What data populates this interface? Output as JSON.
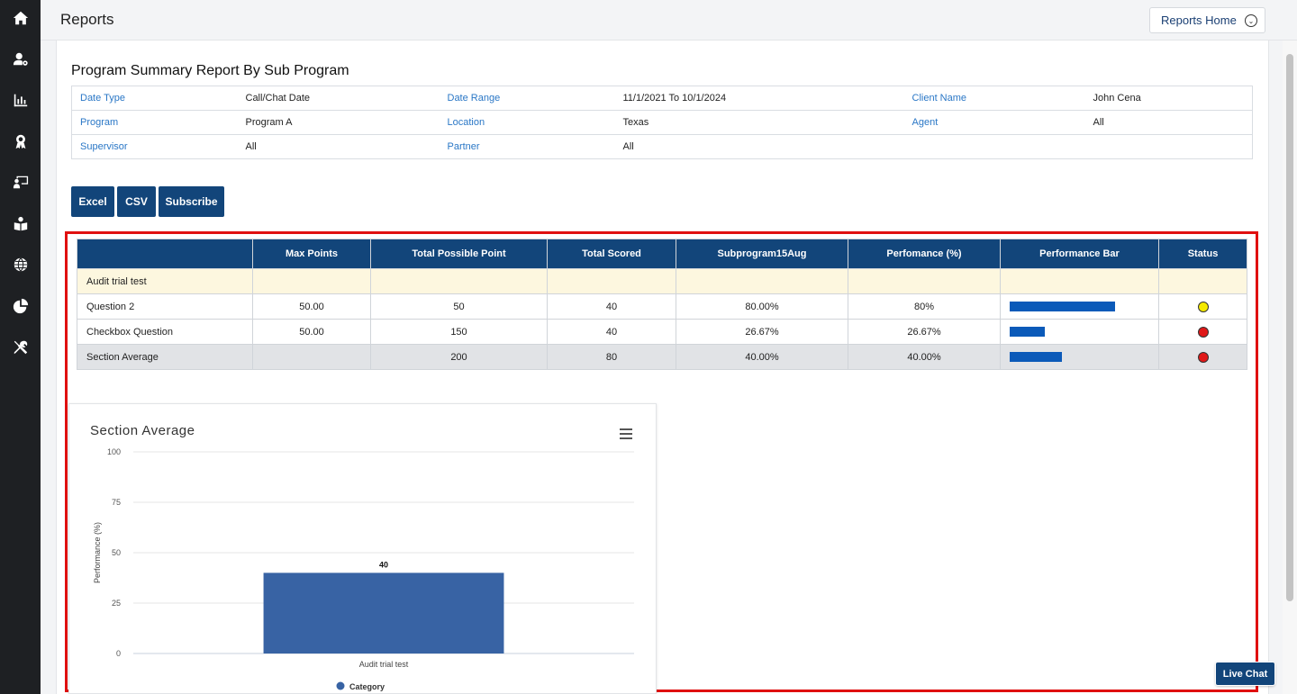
{
  "header": {
    "title": "Reports",
    "reports_home_label": "Reports Home"
  },
  "sidebar": {
    "items": [
      {
        "icon": "home-icon"
      },
      {
        "icon": "user-settings-icon"
      },
      {
        "icon": "bar-chart-icon"
      },
      {
        "icon": "award-icon"
      },
      {
        "icon": "presentation-icon"
      },
      {
        "icon": "book-reader-icon"
      },
      {
        "icon": "globe-icon"
      },
      {
        "icon": "pie-chart-icon"
      },
      {
        "icon": "tools-icon"
      }
    ]
  },
  "report": {
    "title": "Program Summary Report By Sub Program",
    "filters": [
      [
        {
          "label": "Date Type",
          "value": "Call/Chat Date"
        },
        {
          "label": "Date Range",
          "value": "11/1/2021 To 10/1/2024"
        },
        {
          "label": "Client Name",
          "value": "John Cena"
        }
      ],
      [
        {
          "label": "Program",
          "value": "Program A"
        },
        {
          "label": "Location",
          "value": "Texas"
        },
        {
          "label": "Agent",
          "value": "All"
        }
      ],
      [
        {
          "label": "Supervisor",
          "value": "All"
        },
        {
          "label": "Partner",
          "value": "All"
        },
        {
          "label": "",
          "value": ""
        }
      ]
    ],
    "buttons": {
      "excel": "Excel",
      "csv": "CSV",
      "subscribe": "Subscribe"
    }
  },
  "table": {
    "headers": [
      "",
      "Max Points",
      "Total Possible Point",
      "Total Scored",
      "Subprogram15Aug",
      "Perfomance (%)",
      "Performance Bar",
      "Status"
    ],
    "section_label": "Audit trial test",
    "rows": [
      {
        "name": "Question 2",
        "max": "50.00",
        "possible": "50",
        "scored": "40",
        "sub": "80.00%",
        "perf": "80%",
        "bar": 0.8,
        "status_color": "#f5ea00"
      },
      {
        "name": "Checkbox Question",
        "max": "50.00",
        "possible": "150",
        "scored": "40",
        "sub": "26.67%",
        "perf": "26.67%",
        "bar": 0.2667,
        "status_color": "#e01818"
      }
    ],
    "average": {
      "name": "Section Average",
      "max": "",
      "possible": "200",
      "scored": "80",
      "sub": "40.00%",
      "perf": "40.00%",
      "bar": 0.4,
      "status_color": "#e01818"
    }
  },
  "chart_data": {
    "type": "bar",
    "title": "Section Average",
    "categories": [
      "Audit trial test"
    ],
    "series": [
      {
        "name": "Category",
        "values": [
          40
        ]
      }
    ],
    "ylabel": "Performance (%)",
    "xlabel": "",
    "ylim": [
      0,
      100
    ],
    "yticks": [
      "0",
      "25",
      "50",
      "75",
      "100"
    ],
    "data_labels": [
      "40"
    ],
    "grid": true,
    "legend": "bottom",
    "bar_color": "#3863a4"
  },
  "live_chat_label": "Live Chat"
}
